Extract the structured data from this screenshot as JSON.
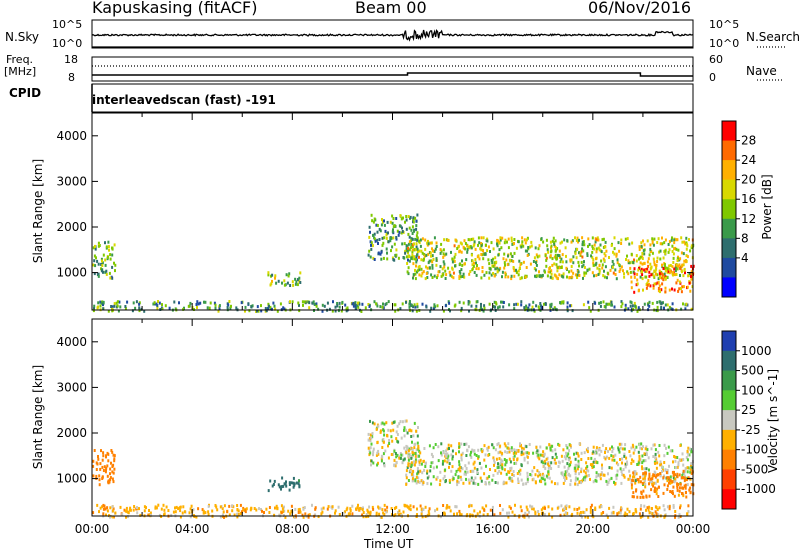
{
  "header": {
    "station": "Kapuskasing (fitACF)",
    "beam": "Beam 00",
    "date": "06/Nov/2016"
  },
  "noise_panel": {
    "left_label": "N.Sky",
    "left_ticks": [
      "10^5",
      "10^0"
    ],
    "right_label": "N.Search",
    "right_ticks": [
      "10^5",
      "10^0"
    ]
  },
  "freq_panel": {
    "left_label_1": "Freq.",
    "left_label_2": "[MHz]",
    "left_ticks": [
      "18",
      "8"
    ],
    "right_label": "Nave",
    "right_ticks": [
      "60",
      "0"
    ]
  },
  "cpid": {
    "label": "CPID",
    "value": "interleavedscan (fast) -191"
  },
  "chart_data": [
    {
      "type": "heatmap",
      "parameter": "Power",
      "ylabel": "Slant Range [km]",
      "ylim": [
        180,
        4500
      ],
      "yticks": [
        "4000",
        "3000",
        "2000",
        "1000"
      ],
      "colorbar_label": "Power [dB]",
      "colorbar_ticks": [
        "28",
        "24",
        "20",
        "16",
        "12",
        "8",
        "4"
      ],
      "colorbar_colors": [
        "#ff0000",
        "#ff6a00",
        "#ffb000",
        "#d8d800",
        "#7fc800",
        "#3a9a4a",
        "#2e6e6e",
        "#1f4aa0",
        "#0000ff"
      ],
      "echo_regions": [
        {
          "t_start": 0.0,
          "t_end": 24.0,
          "range_min": 180,
          "range_max": 400,
          "power_db": 10
        },
        {
          "t_start": 0.0,
          "t_end": 0.9,
          "range_min": 900,
          "range_max": 1700,
          "power_db": 12
        },
        {
          "t_start": 7.0,
          "t_end": 8.3,
          "range_min": 750,
          "range_max": 1050,
          "power_db": 14
        },
        {
          "t_start": 11.0,
          "t_end": 13.0,
          "range_min": 1300,
          "range_max": 2300,
          "power_db": 10
        },
        {
          "t_start": 12.5,
          "t_end": 24.0,
          "range_min": 900,
          "range_max": 1800,
          "power_db": 16
        },
        {
          "t_start": 21.5,
          "t_end": 24.0,
          "range_min": 600,
          "range_max": 1200,
          "power_db": 24
        }
      ]
    },
    {
      "type": "heatmap",
      "parameter": "Velocity",
      "ylabel": "Slant Range [km]",
      "xlabel": "Time UT",
      "xticks": [
        "00:00",
        "04:00",
        "08:00",
        "12:00",
        "16:00",
        "20:00",
        "00:00"
      ],
      "ylim": [
        180,
        4500
      ],
      "yticks": [
        "4000",
        "3000",
        "2000",
        "1000"
      ],
      "colorbar_label": "Velocity [m s^-1]",
      "colorbar_ticks": [
        "1000",
        "500",
        "100",
        "25",
        "-25",
        "-100",
        "-500",
        "-1000"
      ],
      "colorbar_colors": [
        "#1f3fb0",
        "#2e6e6e",
        "#3a9a4a",
        "#55cc33",
        "#c8c8c0",
        "#ffb000",
        "#ff8000",
        "#ff4000",
        "#ff0000"
      ],
      "echo_regions": [
        {
          "t_start": 0.0,
          "t_end": 24.0,
          "range_min": 180,
          "range_max": 450,
          "velocity": -60
        },
        {
          "t_start": 0.0,
          "t_end": 0.9,
          "range_min": 900,
          "range_max": 1700,
          "velocity": -200
        },
        {
          "t_start": 7.0,
          "t_end": 8.3,
          "range_min": 750,
          "range_max": 1050,
          "velocity": 150
        },
        {
          "t_start": 11.0,
          "t_end": 13.0,
          "range_min": 1300,
          "range_max": 2300,
          "velocity": 0
        },
        {
          "t_start": 12.5,
          "t_end": 24.0,
          "range_min": 900,
          "range_max": 1800,
          "velocity": 0
        },
        {
          "t_start": 21.5,
          "t_end": 24.0,
          "range_min": 600,
          "range_max": 1200,
          "velocity": -150
        }
      ]
    }
  ]
}
